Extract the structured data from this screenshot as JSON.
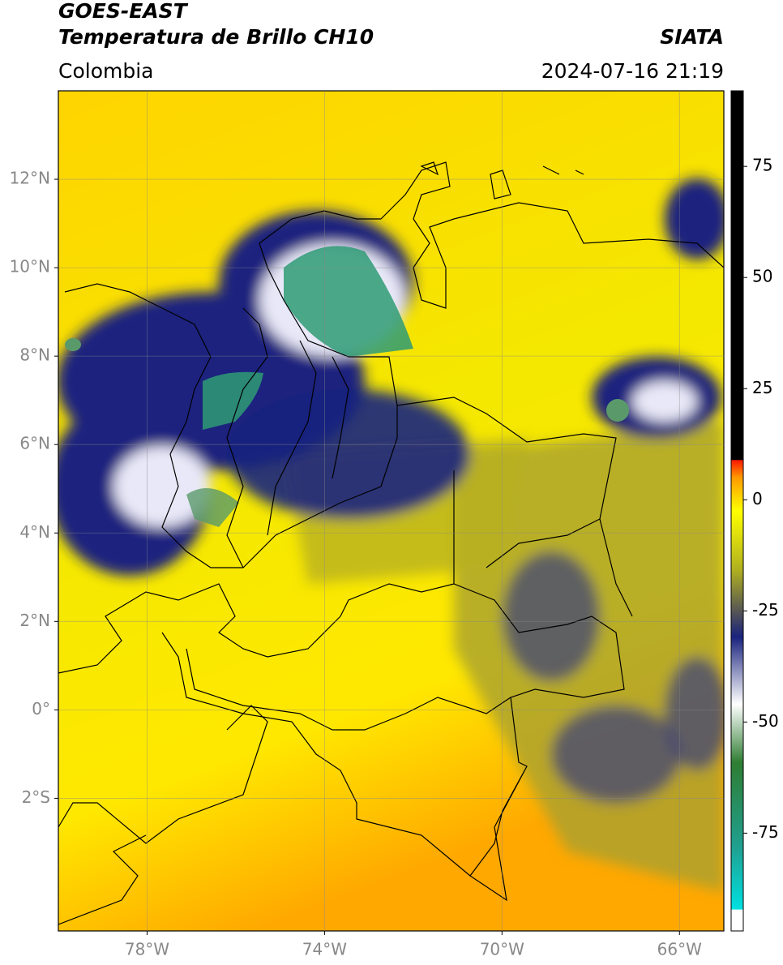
{
  "header": {
    "title": "GOES-EAST",
    "subtitle": "Temperatura de Brillo CH10",
    "source": "SIATA",
    "region": "Colombia",
    "datetime": "2024-07-16 21:19"
  },
  "map": {
    "xlim": [
      -80,
      -65
    ],
    "ylim": [
      -5,
      14
    ],
    "xticks": [
      {
        "value": -78,
        "label": "78°W"
      },
      {
        "value": -74,
        "label": "74°W"
      },
      {
        "value": -70,
        "label": "70°W"
      },
      {
        "value": -66,
        "label": "66°W"
      }
    ],
    "yticks": [
      {
        "value": 12,
        "label": "12°N"
      },
      {
        "value": 10,
        "label": "10°N"
      },
      {
        "value": 8,
        "label": "8°N"
      },
      {
        "value": 6,
        "label": "6°N"
      },
      {
        "value": 4,
        "label": "4°N"
      },
      {
        "value": 2,
        "label": "2°N"
      },
      {
        "value": 0,
        "label": "0°"
      },
      {
        "value": -2,
        "label": "2°S"
      }
    ],
    "grid": true
  },
  "colorbar": {
    "lim": [
      -97,
      92
    ],
    "ticks": [
      75,
      50,
      25,
      0,
      -25,
      -50,
      -75
    ]
  }
}
